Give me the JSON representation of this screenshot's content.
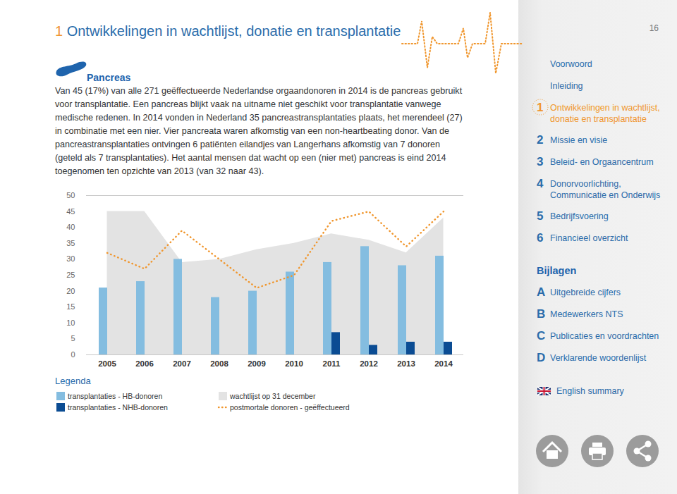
{
  "page": {
    "header": {
      "number": "1",
      "title": "Ontwikkelingen in wachtlijst, donatie en transplantatie"
    },
    "page_number": "16",
    "section_title": "Pancreas",
    "paragraph": [
      "Van 45 (17%) van alle 271 geëffectueerde Nederlandse orgaandonoren in 2014 is de pancreas gebruikt",
      "voor transplantatie. Een pancreas blijkt vaak na uitname niet geschikt voor transplantatie vanwege",
      "medische redenen. In 2014 vonden in Nederland 35 pancreastransplantaties plaats, het merendeel (27)",
      "in combinatie met een nier. Vier pancreata waren afkomstig van een non-heartbeating donor. Van de",
      "pancreastransplantaties ontvingen 6 patiënten eilandjes van Langerhans afkomstig van 7 donoren",
      "(geteld als 7 transplantaties). Het aantal mensen dat wacht op een (nier met) pancreas is eind 2014",
      "toegenomen ten opzichte van 2013 (van 32 naar 43)."
    ],
    "legend_title": "Legenda",
    "sidebar": {
      "items": [
        {
          "label": [
            "Voorwoord"
          ]
        },
        {
          "label": [
            "Inleiding"
          ]
        },
        {
          "number": "1",
          "label": [
            "Ontwikkelingen in wachtlijst,",
            "donatie en transplantatie"
          ],
          "active": true
        },
        {
          "number": "2",
          "label": [
            "Missie en visie"
          ]
        },
        {
          "number": "3",
          "label": [
            "Beleid- en Orgaancentrum"
          ]
        },
        {
          "number": "4",
          "label": [
            "Donorvoorlichting,",
            "Communicatie en Onderwijs"
          ]
        },
        {
          "number": "5",
          "label": [
            "Bedrijfsvoering"
          ]
        },
        {
          "number": "6",
          "label": [
            "Financieel overzicht"
          ]
        }
      ],
      "appendix_title": "Bijlagen",
      "appendix": [
        {
          "number": "A",
          "label": [
            "Uitgebreide cijfers"
          ]
        },
        {
          "number": "B",
          "label": [
            "Medewerkers NTS"
          ]
        },
        {
          "number": "C",
          "label": [
            "Publicaties en voordrachten"
          ]
        },
        {
          "number": "D",
          "label": [
            "Verklarende woordenlijst"
          ]
        }
      ],
      "language": "English summary"
    }
  },
  "chart_data": {
    "type": "bar",
    "categories": [
      "2005",
      "2006",
      "2007",
      "2008",
      "2009",
      "2010",
      "2011",
      "2012",
      "2013",
      "2014"
    ],
    "series": [
      {
        "name": "transplantaties - HB-donoren",
        "type": "bar",
        "color": "#84bde0",
        "values": [
          21,
          23,
          30,
          18,
          20,
          26,
          29,
          34,
          28,
          31
        ]
      },
      {
        "name": "transplantaties - NHB-donoren",
        "type": "bar",
        "color": "#0b4c93",
        "values": [
          null,
          null,
          null,
          null,
          null,
          null,
          7,
          3,
          4,
          4
        ]
      },
      {
        "name": "wachtlijst op 31 december",
        "type": "area",
        "color": "#e3e3e3",
        "values": [
          45,
          45,
          29,
          30,
          33,
          35,
          38,
          36,
          32,
          43
        ]
      },
      {
        "name": "postmortale donoren - geëffectueerd",
        "type": "line",
        "line_style": "dotted",
        "color": "#f0962d",
        "values": [
          32,
          27,
          39,
          30,
          21,
          25,
          42,
          45,
          34,
          45
        ]
      }
    ],
    "ylim": [
      0,
      50
    ],
    "yticks": [
      0,
      5,
      10,
      15,
      20,
      25,
      30,
      35,
      40,
      45,
      50
    ],
    "grid": false,
    "legend": "bottom left"
  }
}
